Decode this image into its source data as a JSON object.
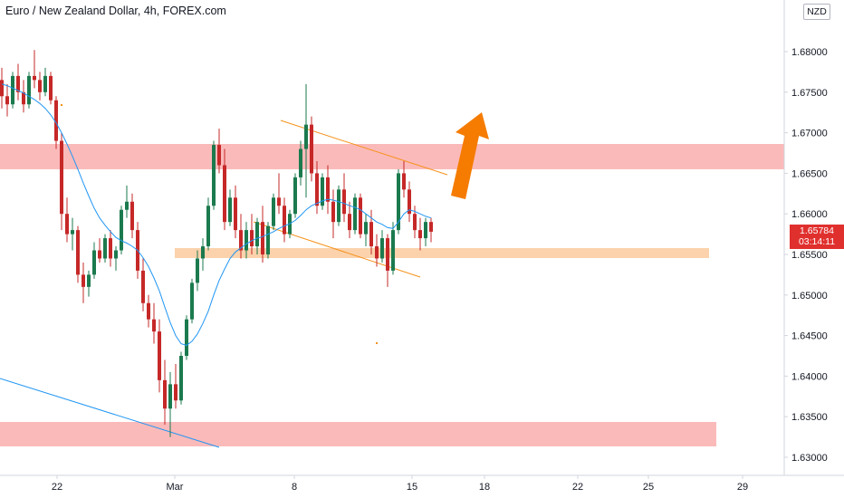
{
  "header": {
    "title": "Euro / New Zealand Dollar, 4h, FOREX.com"
  },
  "currency_badge": "NZD",
  "last_price": {
    "value": "1.65784",
    "countdown": "03:14:11"
  },
  "colors": {
    "up": "#26a69a",
    "down": "#ef5350",
    "candle_up_body": "#1b7a4e",
    "candle_down_body": "#c62828",
    "zone_red": "#fbb3b3",
    "zone_orange": "#fbd0a8",
    "channel": "#f5921b",
    "ma": "#2196f3",
    "arrow": "#f57c00",
    "price_tag": "#e0302e"
  },
  "chart_data": {
    "type": "candlestick",
    "title": "Euro / New Zealand Dollar, 4h, FOREX.com",
    "y_ticks": [
      "1.68000",
      "1.67500",
      "1.67000",
      "1.66500",
      "1.66000",
      "1.65500",
      "1.65000",
      "1.64500",
      "1.64000",
      "1.63500",
      "1.63000"
    ],
    "x_ticks": [
      "22",
      "Mar",
      "8",
      "15",
      "18",
      "22",
      "25",
      "29"
    ],
    "ylim": [
      1.628,
      1.6875
    ],
    "x_index_range": [
      0,
      171
    ],
    "x_tick_index": [
      15,
      48,
      80,
      112,
      132,
      158,
      178,
      204
    ],
    "ohlc": [
      [
        1.6765,
        1.678,
        1.673,
        1.6745
      ],
      [
        1.6745,
        1.676,
        1.672,
        1.6735
      ],
      [
        1.6735,
        1.6775,
        1.673,
        1.677
      ],
      [
        1.677,
        1.6785,
        1.674,
        1.675
      ],
      [
        1.675,
        1.6765,
        1.6725,
        1.6735
      ],
      [
        1.6735,
        1.6775,
        1.673,
        1.677
      ],
      [
        1.677,
        1.6802,
        1.6755,
        1.6765
      ],
      [
        1.6765,
        1.6775,
        1.674,
        1.675
      ],
      [
        1.675,
        1.678,
        1.6745,
        1.677
      ],
      [
        1.677,
        1.6775,
        1.6735,
        1.674
      ],
      [
        1.674,
        1.6745,
        1.668,
        1.669
      ],
      [
        1.669,
        1.67,
        1.658,
        1.66
      ],
      [
        1.66,
        1.662,
        1.6565,
        1.6575
      ],
      [
        1.6575,
        1.6595,
        1.6555,
        1.658
      ],
      [
        1.658,
        1.6585,
        1.6515,
        1.6525
      ],
      [
        1.6525,
        1.654,
        1.649,
        1.651
      ],
      [
        1.651,
        1.653,
        1.6498,
        1.6525
      ],
      [
        1.6525,
        1.6565,
        1.652,
        1.6555
      ],
      [
        1.6555,
        1.657,
        1.654,
        1.6545
      ],
      [
        1.6545,
        1.6575,
        1.654,
        1.657
      ],
      [
        1.657,
        1.658,
        1.6535,
        1.6545
      ],
      [
        1.6545,
        1.656,
        1.653,
        1.6555
      ],
      [
        1.6555,
        1.661,
        1.655,
        1.6605
      ],
      [
        1.6605,
        1.6635,
        1.6595,
        1.6615
      ],
      [
        1.6615,
        1.6625,
        1.657,
        1.658
      ],
      [
        1.658,
        1.659,
        1.652,
        1.653
      ],
      [
        1.653,
        1.6545,
        1.648,
        1.649
      ],
      [
        1.649,
        1.65,
        1.646,
        1.647
      ],
      [
        1.647,
        1.649,
        1.644,
        1.6455
      ],
      [
        1.6455,
        1.647,
        1.638,
        1.6395
      ],
      [
        1.6395,
        1.642,
        1.634,
        1.636
      ],
      [
        1.636,
        1.6405,
        1.6325,
        1.639
      ],
      [
        1.639,
        1.6415,
        1.636,
        1.637
      ],
      [
        1.637,
        1.643,
        1.6365,
        1.6425
      ],
      [
        1.6425,
        1.6475,
        1.642,
        1.647
      ],
      [
        1.647,
        1.652,
        1.6465,
        1.6515
      ],
      [
        1.6515,
        1.6555,
        1.6505,
        1.6545
      ],
      [
        1.6545,
        1.657,
        1.653,
        1.656
      ],
      [
        1.656,
        1.662,
        1.6555,
        1.661
      ],
      [
        1.661,
        1.669,
        1.6605,
        1.6685
      ],
      [
        1.6685,
        1.6705,
        1.665,
        1.666
      ],
      [
        1.666,
        1.668,
        1.658,
        1.659
      ],
      [
        1.659,
        1.663,
        1.6585,
        1.662
      ],
      [
        1.662,
        1.6635,
        1.657,
        1.658
      ],
      [
        1.658,
        1.66,
        1.6545,
        1.6555
      ],
      [
        1.6555,
        1.659,
        1.6545,
        1.658
      ],
      [
        1.658,
        1.66,
        1.655,
        1.656
      ],
      [
        1.656,
        1.6595,
        1.655,
        1.659
      ],
      [
        1.659,
        1.661,
        1.654,
        1.655
      ],
      [
        1.655,
        1.659,
        1.6545,
        1.6585
      ],
      [
        1.6585,
        1.6625,
        1.658,
        1.662
      ],
      [
        1.662,
        1.665,
        1.66,
        1.661
      ],
      [
        1.661,
        1.662,
        1.6565,
        1.6575
      ],
      [
        1.6575,
        1.6605,
        1.657,
        1.66
      ],
      [
        1.66,
        1.665,
        1.6595,
        1.6645
      ],
      [
        1.6645,
        1.669,
        1.6635,
        1.668
      ],
      [
        1.668,
        1.676,
        1.662,
        1.671
      ],
      [
        1.671,
        1.672,
        1.664,
        1.665
      ],
      [
        1.665,
        1.6665,
        1.66,
        1.661
      ],
      [
        1.661,
        1.665,
        1.6605,
        1.6645
      ],
      [
        1.6645,
        1.666,
        1.66,
        1.6615
      ],
      [
        1.6615,
        1.663,
        1.657,
        1.659
      ],
      [
        1.659,
        1.6635,
        1.6585,
        1.663
      ],
      [
        1.663,
        1.665,
        1.659,
        1.66
      ],
      [
        1.66,
        1.6615,
        1.657,
        1.658
      ],
      [
        1.658,
        1.6625,
        1.6575,
        1.662
      ],
      [
        1.662,
        1.6625,
        1.657,
        1.6575
      ],
      [
        1.6575,
        1.66,
        1.656,
        1.659
      ],
      [
        1.659,
        1.6605,
        1.655,
        1.656
      ],
      [
        1.656,
        1.6575,
        1.6535,
        1.6545
      ],
      [
        1.6545,
        1.658,
        1.654,
        1.657
      ],
      [
        1.657,
        1.6575,
        1.651,
        1.653
      ],
      [
        1.653,
        1.659,
        1.6525,
        1.658
      ],
      [
        1.658,
        1.6655,
        1.6575,
        1.665
      ],
      [
        1.665,
        1.6665,
        1.662,
        1.663
      ],
      [
        1.663,
        1.664,
        1.659,
        1.66
      ],
      [
        1.66,
        1.661,
        1.657,
        1.658
      ],
      [
        1.658,
        1.6595,
        1.6555,
        1.657
      ],
      [
        1.657,
        1.6595,
        1.656,
        1.659
      ],
      [
        1.659,
        1.6595,
        1.6565,
        1.6578
      ]
    ],
    "moving_average": [
      1.676,
      1.6758,
      1.6755,
      1.6752,
      1.6749,
      1.6745,
      1.6741,
      1.6736,
      1.673,
      1.6722,
      1.6712,
      1.67,
      1.6686,
      1.6671,
      1.6655,
      1.6638,
      1.6622,
      1.6607,
      1.6595,
      1.6586,
      1.6578,
      1.6571,
      1.6567,
      1.6564,
      1.656,
      1.6555,
      1.6546,
      1.6535,
      1.6521,
      1.6505,
      1.6485,
      1.6466,
      1.645,
      1.644,
      1.6438,
      1.6443,
      1.6452,
      1.6465,
      1.648,
      1.65,
      1.6518,
      1.6532,
      1.6545,
      1.6553,
      1.6558,
      1.6563,
      1.6567,
      1.657,
      1.6572,
      1.6575,
      1.6578,
      1.6582,
      1.6585,
      1.6588,
      1.6592,
      1.6598,
      1.6605,
      1.661,
      1.6613,
      1.6616,
      1.6618,
      1.6617,
      1.6615,
      1.6613,
      1.661,
      1.6608,
      1.6605,
      1.66,
      1.6595,
      1.659,
      1.6587,
      1.6583,
      1.6582,
      1.659,
      1.66,
      1.6605,
      1.6603,
      1.66,
      1.6597,
      1.6595
    ]
  }
}
